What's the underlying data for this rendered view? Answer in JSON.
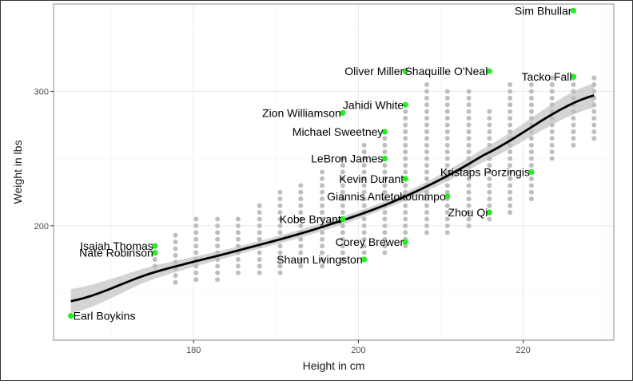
{
  "chart_data": {
    "type": "scatter",
    "xlabel": "Height in cm",
    "ylabel": "Weight in lbs",
    "xlim": [
      163,
      231
    ],
    "ylim": [
      115,
      365
    ],
    "x_ticks": [
      180,
      200,
      220
    ],
    "y_ticks": [
      200,
      300
    ],
    "x_tick_labels": [
      "180",
      "200",
      "220"
    ],
    "y_tick_labels": [
      "200",
      "300"
    ],
    "grid": true,
    "colors": {
      "background_points": "#bebebe",
      "highlight_points": "#22ee22",
      "trend_line": "#000000",
      "confidence_band": "#cccccc",
      "grid_major": "#ebebeb",
      "grid_minor": "#f5f5f5",
      "panel_border": "#8c8c8c"
    },
    "trend": {
      "method": "smooth",
      "x": [
        165.1,
        175,
        185,
        195,
        205,
        215,
        228.6
      ],
      "y": [
        144,
        165,
        181,
        198,
        220,
        252,
        297
      ],
      "band": [
        9,
        5,
        3,
        3,
        3,
        5,
        9
      ]
    },
    "background_points": {
      "height_cm": [
        175.3,
        177.8,
        180.3,
        182.9,
        185.4,
        188.0,
        190.5,
        193.0,
        195.6,
        198.1,
        200.7,
        203.2,
        205.7,
        208.3,
        210.8,
        213.4,
        215.9,
        218.4,
        221.0,
        223.5,
        226.1,
        228.6
      ],
      "weight_min": [
        170,
        158,
        160,
        160,
        165,
        165,
        165,
        170,
        170,
        175,
        180,
        180,
        185,
        195,
        195,
        200,
        205,
        210,
        220,
        250,
        260,
        265
      ],
      "weight_max": [
        185,
        195,
        205,
        205,
        205,
        215,
        225,
        230,
        240,
        250,
        260,
        270,
        285,
        305,
        300,
        300,
        285,
        305,
        305,
        310,
        310,
        310
      ]
    },
    "highlighted_players": [
      {
        "name": "Sim Bhullar",
        "height_cm": 226.1,
        "weight_lbs": 360
      },
      {
        "name": "Oliver Miller",
        "height_cm": 205.7,
        "weight_lbs": 315
      },
      {
        "name": "Shaquille O'Neal",
        "height_cm": 215.9,
        "weight_lbs": 315
      },
      {
        "name": "Tacko Fall",
        "height_cm": 226.1,
        "weight_lbs": 311
      },
      {
        "name": "Jahidi White",
        "height_cm": 205.7,
        "weight_lbs": 290
      },
      {
        "name": "Zion Williamson",
        "height_cm": 198.1,
        "weight_lbs": 284
      },
      {
        "name": "Michael Sweetney",
        "height_cm": 203.2,
        "weight_lbs": 270
      },
      {
        "name": "LeBron James",
        "height_cm": 203.2,
        "weight_lbs": 250
      },
      {
        "name": "Kristaps Porzingis",
        "height_cm": 221.0,
        "weight_lbs": 240
      },
      {
        "name": "Kevin Durant",
        "height_cm": 205.7,
        "weight_lbs": 235
      },
      {
        "name": "Giannis Antetokounmpo",
        "height_cm": 210.8,
        "weight_lbs": 222
      },
      {
        "name": "Zhou Qi",
        "height_cm": 215.9,
        "weight_lbs": 210
      },
      {
        "name": "Kobe Bryant",
        "height_cm": 198.1,
        "weight_lbs": 205
      },
      {
        "name": "Corey Brewer",
        "height_cm": 205.7,
        "weight_lbs": 188
      },
      {
        "name": "Isaiah Thomas",
        "height_cm": 175.3,
        "weight_lbs": 185
      },
      {
        "name": "Nate Robinson",
        "height_cm": 175.3,
        "weight_lbs": 180
      },
      {
        "name": "Shaun Livingston",
        "height_cm": 200.7,
        "weight_lbs": 175
      },
      {
        "name": "Earl Boykins",
        "height_cm": 165.1,
        "weight_lbs": 133
      }
    ]
  }
}
